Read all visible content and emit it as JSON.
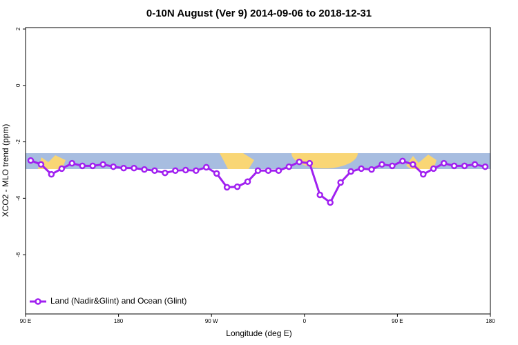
{
  "chart_data": {
    "type": "line",
    "title": "0-10N August (Ver 9)   2014-09-06 to 2018-12-31",
    "x_label": "Longitude (deg E)",
    "y_label": "XCO2 - MLO trend (ppm)",
    "x": [
      95,
      105,
      115,
      125,
      135,
      145,
      155,
      165,
      175,
      185,
      195,
      205,
      215,
      225,
      235,
      245,
      255,
      265,
      275,
      285,
      295,
      305,
      315,
      325,
      335,
      345,
      355,
      365,
      375,
      385,
      395,
      405,
      415,
      425,
      435,
      445,
      455,
      465,
      475,
      485,
      495,
      505,
      515,
      525,
      535
    ],
    "series": [
      {
        "name": "Land (Nadir&Glint) and Ocean (Glint)",
        "color": "#a020f0",
        "values": [
          -2.66,
          -2.8,
          -3.15,
          -2.95,
          -2.76,
          -2.85,
          -2.85,
          -2.8,
          -2.88,
          -2.93,
          -2.93,
          -2.98,
          -3.02,
          -3.1,
          -3.02,
          -3.0,
          -3.02,
          -2.9,
          -3.12,
          -3.61,
          -3.59,
          -3.41,
          -3.02,
          -3.02,
          -3.02,
          -2.88,
          -2.71,
          -2.76,
          -3.88,
          -4.15,
          -3.44,
          -3.05,
          -2.95,
          -2.98,
          -2.8,
          -2.85,
          -2.68,
          -2.8,
          -3.15,
          -2.95,
          -2.76,
          -2.85,
          -2.85,
          -2.8,
          -2.88
        ]
      }
    ],
    "xlim": [
      90,
      540
    ],
    "xticks": [
      {
        "value": 90,
        "label": "90 E"
      },
      180,
      {
        "value": 270,
        "label": "90 W"
      },
      {
        "value": 360,
        "label": "0"
      },
      {
        "value": 450,
        "label": "90 E"
      },
      {
        "value": 540,
        "label": "180"
      }
    ],
    "ylim": [
      -8.1,
      2.05
    ],
    "yticks": [
      -6,
      -4,
      -2,
      0,
      2
    ],
    "legend": "bottom-left"
  }
}
